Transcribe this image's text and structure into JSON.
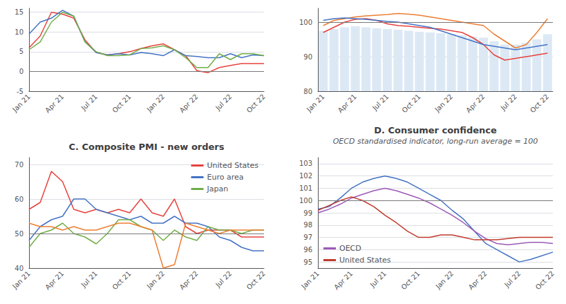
{
  "chart_data": [
    {
      "type": "line",
      "categories": [
        "Jan 21",
        null,
        null,
        "Apr 21",
        null,
        null,
        "Jul 21",
        null,
        null,
        "Oct 21",
        null,
        null,
        "Jan 22",
        null,
        null,
        "Apr 22",
        null,
        null,
        "Jul 22",
        null,
        null,
        "Oct 22"
      ],
      "series": [
        {
          "color": "#e8413c",
          "values": [
            6.0,
            9.0,
            15.0,
            14.5,
            13.5,
            8.0,
            4.8,
            4.2,
            4.5,
            5.0,
            5.8,
            6.5,
            7.0,
            5.5,
            4.0,
            0.2,
            -0.3,
            1.0,
            1.5,
            2.0,
            2.0,
            2.0
          ]
        },
        {
          "color": "#4472c4",
          "values": [
            9.5,
            12.5,
            13.5,
            15.5,
            14.0,
            7.5,
            4.8,
            4.2,
            4.5,
            4.2,
            4.8,
            4.5,
            4.0,
            5.5,
            4.0,
            3.8,
            3.5,
            3.5,
            4.5,
            3.5,
            4.2,
            4.0
          ]
        },
        {
          "color": "#70ad47",
          "values": [
            5.5,
            7.5,
            12.5,
            15.0,
            14.0,
            7.5,
            5.0,
            4.0,
            4.0,
            4.2,
            5.8,
            6.0,
            6.5,
            5.5,
            3.5,
            1.0,
            1.0,
            4.5,
            3.0,
            4.5,
            4.5,
            4.0
          ]
        }
      ],
      "ylim": [
        -5,
        16
      ],
      "yticks": [
        -5,
        0,
        5,
        10,
        15
      ],
      "hline": 0,
      "grid": true
    },
    {
      "type": "line",
      "categories": [
        "Jan 21",
        null,
        null,
        "Apr 21",
        null,
        null,
        "Jul 21",
        null,
        null,
        "Oct 21",
        null,
        null,
        "Jan 22",
        null,
        null,
        "Apr 22",
        null,
        null,
        "Jul 22",
        null,
        null,
        "Oct 22"
      ],
      "series": [
        {
          "type": "bar",
          "color": "#dce9f5",
          "values": [
            97.5,
            98.0,
            98.5,
            98.8,
            98.5,
            98.2,
            98.0,
            97.8,
            97.5,
            97.2,
            97.0,
            96.8,
            96.5,
            96.2,
            95.8,
            95.5,
            94.5,
            93.5,
            93.5,
            94.0,
            95.0,
            96.5
          ]
        },
        {
          "color": "#ed7d31",
          "values": [
            99.0,
            100.5,
            101.0,
            101.5,
            101.8,
            102.0,
            102.2,
            102.5,
            102.3,
            102.0,
            101.5,
            101.0,
            100.5,
            100.0,
            99.5,
            99.0,
            96.5,
            94.5,
            92.5,
            93.5,
            97.0,
            101.0
          ]
        },
        {
          "color": "#e8413c",
          "values": [
            97.0,
            98.5,
            100.0,
            100.8,
            101.0,
            100.5,
            99.5,
            99.0,
            98.8,
            98.5,
            98.2,
            98.0,
            97.5,
            97.0,
            95.5,
            93.5,
            90.5,
            89.0,
            89.5,
            90.0,
            90.5,
            91.0
          ]
        },
        {
          "color": "#4472c4",
          "values": [
            100.5,
            101.0,
            101.2,
            101.0,
            100.8,
            100.5,
            100.2,
            100.0,
            99.5,
            99.0,
            98.5,
            97.5,
            96.5,
            95.5,
            94.5,
            93.5,
            93.0,
            92.5,
            92.0,
            92.5,
            93.0,
            93.5
          ]
        }
      ],
      "ylim": [
        80,
        104
      ],
      "yticks": [
        80,
        90,
        100
      ],
      "hline": 100,
      "grid": true
    },
    {
      "type": "line",
      "title": "C. Composite PMI - new orders",
      "categories": [
        "Jan 21",
        null,
        null,
        "Apr 21",
        null,
        null,
        "Jul 21",
        null,
        null,
        "Oct 21",
        null,
        null,
        "Jan 22",
        null,
        null,
        "Apr 22",
        null,
        null,
        "Jul 22",
        null,
        null,
        "Oct 22"
      ],
      "series": [
        {
          "name": "United States",
          "color": "#e8413c",
          "values": [
            57,
            59,
            68,
            65,
            57,
            56,
            57,
            56,
            57,
            56,
            60,
            56,
            55,
            60,
            52,
            50,
            51,
            51,
            51,
            49,
            49,
            49
          ]
        },
        {
          "name": "Euro area",
          "color": "#4472c4",
          "values": [
            48,
            52,
            54,
            55,
            60,
            60,
            57,
            56,
            55,
            54,
            55,
            53,
            53,
            55,
            53,
            53,
            52,
            49,
            48,
            46,
            45,
            45
          ]
        },
        {
          "name": "Japan",
          "color": "#70ad47",
          "values": [
            46,
            50,
            51,
            53,
            50,
            49,
            47,
            50,
            54,
            54,
            52,
            51,
            48,
            51,
            49,
            48,
            52,
            51,
            51,
            50,
            51,
            51
          ]
        },
        {
          "color": "#ed7d31",
          "values": [
            53,
            52,
            52,
            51,
            52,
            51,
            51,
            52,
            53,
            53,
            52,
            51,
            40,
            41,
            53,
            52,
            51,
            50,
            51,
            51,
            51,
            51
          ]
        }
      ],
      "ylim": [
        40,
        72
      ],
      "yticks": [
        40,
        50,
        60,
        70
      ],
      "hline": 50,
      "grid": true,
      "legend": "upper right"
    },
    {
      "type": "line",
      "title": "D. Consumer confidence",
      "subtitle": "OECD standardised indicator, long-run average = 100",
      "categories": [
        "Jan 21",
        null,
        null,
        "Apr 21",
        null,
        null,
        "Jul 21",
        null,
        null,
        "Oct 21",
        null,
        null,
        "Jan 22",
        null,
        null,
        "Apr 22",
        null,
        null,
        "Jul 22",
        null,
        null,
        "Oct 22"
      ],
      "series": [
        {
          "color": "#4472c4",
          "values": [
            99.3,
            99.5,
            100.2,
            101.0,
            101.5,
            101.8,
            102.0,
            101.8,
            101.5,
            101.0,
            100.5,
            100.0,
            99.2,
            98.5,
            97.5,
            96.5,
            96.0,
            95.5,
            95.0,
            95.2,
            95.5,
            95.8
          ]
        },
        {
          "name": "OECD",
          "color": "#9b59b6",
          "values": [
            99.0,
            99.3,
            99.7,
            100.2,
            100.5,
            100.8,
            101.0,
            100.8,
            100.5,
            100.2,
            99.8,
            99.3,
            98.8,
            98.2,
            97.5,
            96.9,
            96.5,
            96.4,
            96.5,
            96.6,
            96.6,
            96.5
          ]
        },
        {
          "name": "United States",
          "color": "#c0392b",
          "values": [
            99.2,
            99.6,
            100.0,
            100.3,
            100.0,
            99.5,
            98.8,
            98.2,
            97.5,
            97.0,
            97.0,
            97.2,
            97.2,
            97.0,
            96.8,
            96.8,
            96.8,
            96.9,
            97.0,
            97.0,
            97.0,
            97.0
          ]
        }
      ],
      "ylim": [
        94.5,
        103.5
      ],
      "yticks": [
        95,
        96,
        97,
        98,
        99,
        100,
        101,
        102,
        103
      ],
      "hline": 100,
      "grid": true,
      "legend": "lower left"
    }
  ]
}
